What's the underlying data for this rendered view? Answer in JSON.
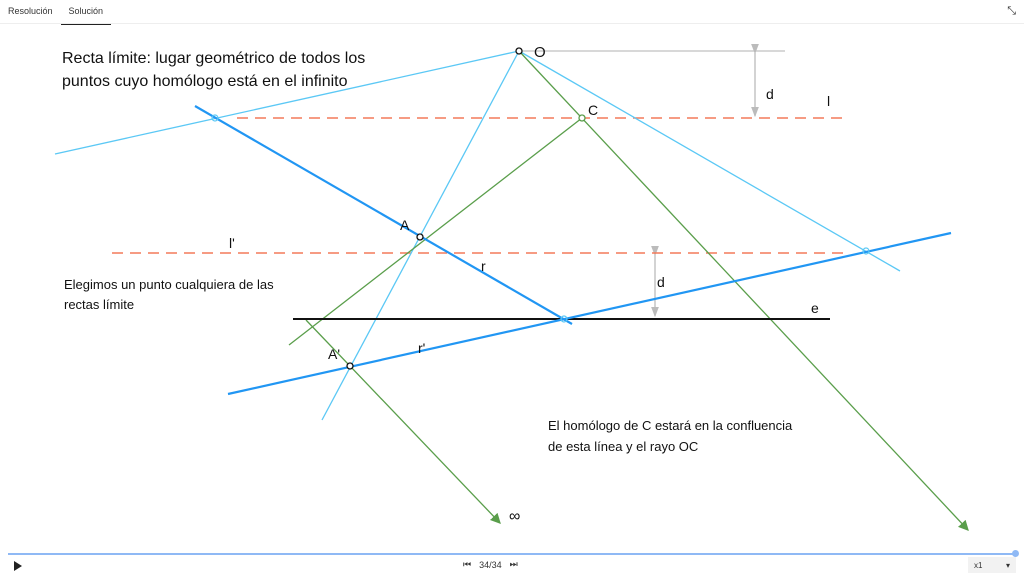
{
  "tabs": [
    {
      "label": "Resolución",
      "active": false
    },
    {
      "label": "Solución",
      "active": true
    }
  ],
  "texts": {
    "title_line1": "Recta límite: lugar geométrico de todos los",
    "title_line2": "puntos cuyo homólogo está en el infinito",
    "note1_line1": "Elegimos un punto cualquiera de las",
    "note1_line2": "rectas límite",
    "note2_line1": "El homólogo de C estará en la confluencia",
    "note2_line2": "de esta línea y el rayo OC"
  },
  "labels": {
    "O": "O",
    "C": "C",
    "A": "A",
    "A_prime": "A'",
    "l": "l",
    "l_prime": "l'",
    "r": "r",
    "r_prime": "r'",
    "e": "e",
    "d1": "d",
    "d2": "d",
    "infinity": "∞"
  },
  "colors": {
    "light_blue": "#5bc8f5",
    "blue": "#2196f3",
    "green": "#5a9e4b",
    "limit_red": "#f47a5a",
    "gray": "#bbbbbb"
  },
  "player": {
    "counter": "34/34",
    "speed": "x1",
    "progress_percent": 100,
    "icons": [
      "play-icon",
      "skip-back-icon",
      "skip-forward-icon",
      "exit-fullscreen-icon"
    ]
  }
}
